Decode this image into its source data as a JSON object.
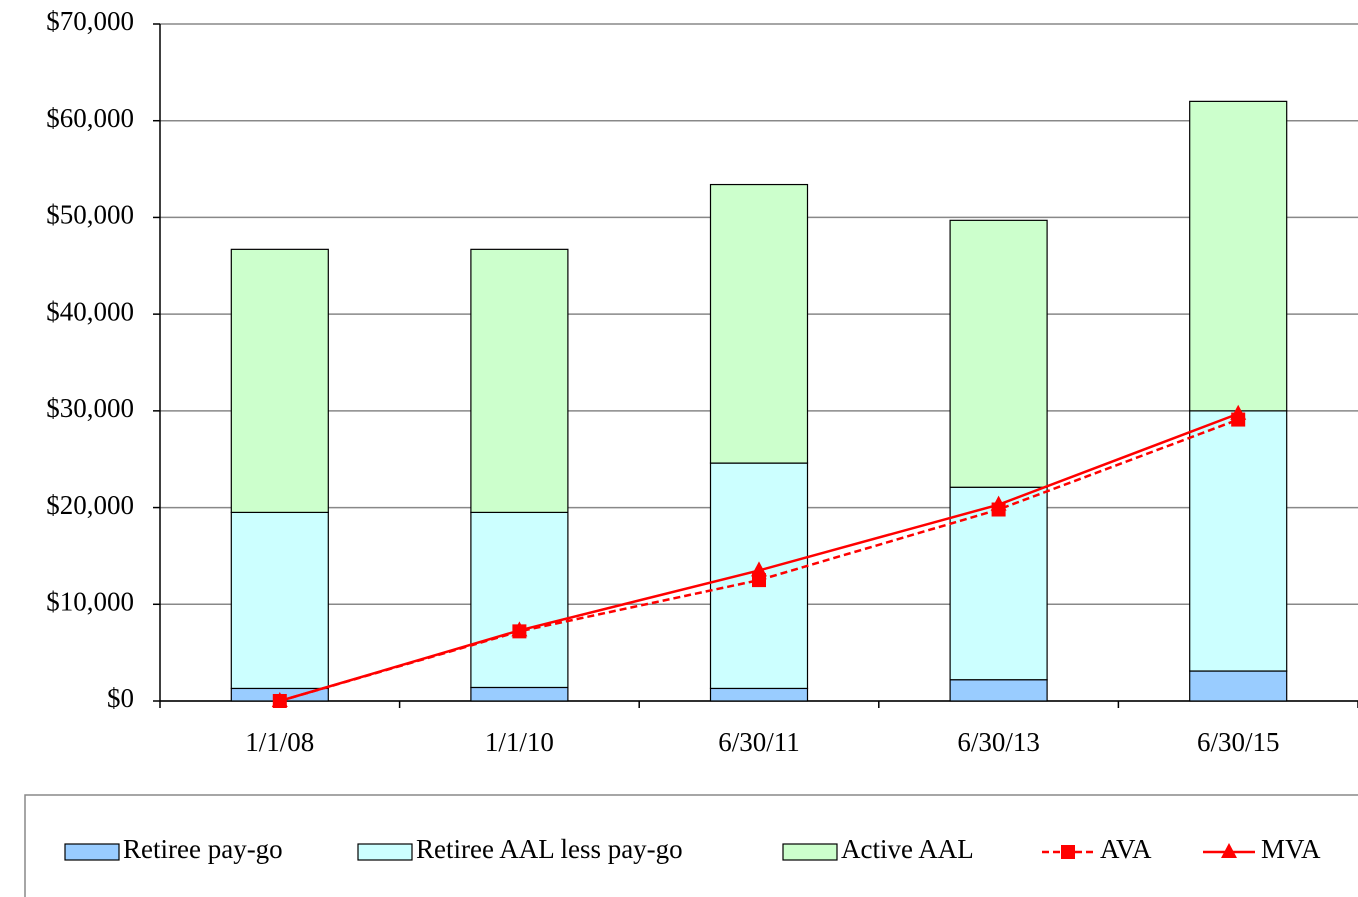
{
  "chart_data": {
    "type": "bar",
    "stacked": true,
    "categories": [
      "1/1/08",
      "1/1/10",
      "6/30/11",
      "6/30/13",
      "6/30/15"
    ],
    "series": [
      {
        "name": "Retiree pay-go",
        "color": "#99ccff",
        "values": [
          1300,
          1400,
          1300,
          2200,
          3100
        ]
      },
      {
        "name": "Retiree AAL less pay-go",
        "color": "#ccffff",
        "values": [
          18200,
          18100,
          23300,
          19900,
          26900
        ]
      },
      {
        "name": "Active AAL",
        "color": "#ccffcc",
        "values": [
          27200,
          27200,
          28800,
          27600,
          32000
        ]
      },
      {
        "name": "AVA",
        "type": "line",
        "color": "#ff0000",
        "marker": "square",
        "dashed": true,
        "values": [
          0,
          7200,
          12500,
          19800,
          29100
        ]
      },
      {
        "name": "MVA",
        "type": "line",
        "color": "#ff0000",
        "marker": "triangle",
        "dashed": false,
        "values": [
          0,
          7300,
          13500,
          20300,
          29700
        ]
      }
    ],
    "ylim": [
      0,
      70000
    ],
    "yticks": [
      {
        "value": 0,
        "label": "$0"
      },
      {
        "value": 10000,
        "label": "$10,000"
      },
      {
        "value": 20000,
        "label": "$20,000"
      },
      {
        "value": 30000,
        "label": "$30,000"
      },
      {
        "value": 40000,
        "label": "$40,000"
      },
      {
        "value": 50000,
        "label": "$50,000"
      },
      {
        "value": 60000,
        "label": "$60,000"
      },
      {
        "value": 70000,
        "label": "$70,000"
      }
    ],
    "grid": true,
    "legend": "bottom"
  }
}
